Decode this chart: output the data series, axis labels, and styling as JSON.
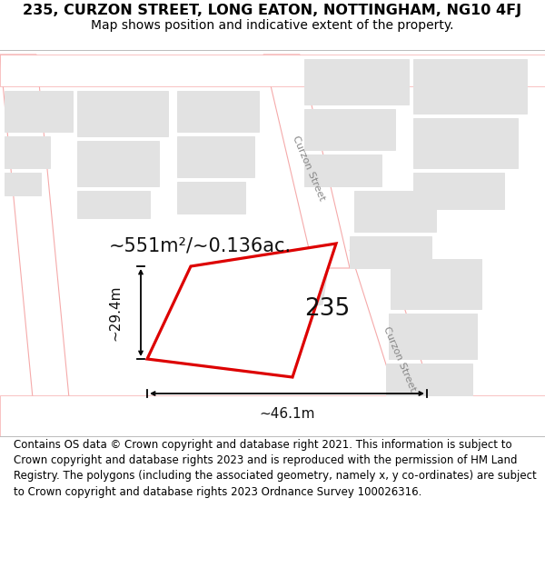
{
  "title_line1": "235, CURZON STREET, LONG EATON, NOTTINGHAM, NG10 4FJ",
  "title_line2": "Map shows position and indicative extent of the property.",
  "footer_text": "Contains OS data © Crown copyright and database right 2021. This information is subject to Crown copyright and database rights 2023 and is reproduced with the permission of HM Land Registry. The polygons (including the associated geometry, namely x, y co-ordinates) are subject to Crown copyright and database rights 2023 Ordnance Survey 100026316.",
  "area_label": "~551m²/~0.136ac.",
  "width_label": "~46.1m",
  "height_label": "~29.4m",
  "property_number": "235",
  "street_label_upper": "Curzon Street",
  "street_label_lower": "Curzon Street",
  "map_bg": "#f8f8f8",
  "road_stroke": "#f5aaaa",
  "bld_fill": "#e2e2e2",
  "bld_stroke": "#e2e2e2",
  "prop_stroke": "#dd0000",
  "prop_fill": "#ffffff",
  "title_fontsize": 11.5,
  "subtitle_fontsize": 10,
  "footer_fontsize": 8.5,
  "area_fontsize": 15,
  "num_fontsize": 19,
  "dim_fontsize": 11,
  "street_fontsize": 8
}
